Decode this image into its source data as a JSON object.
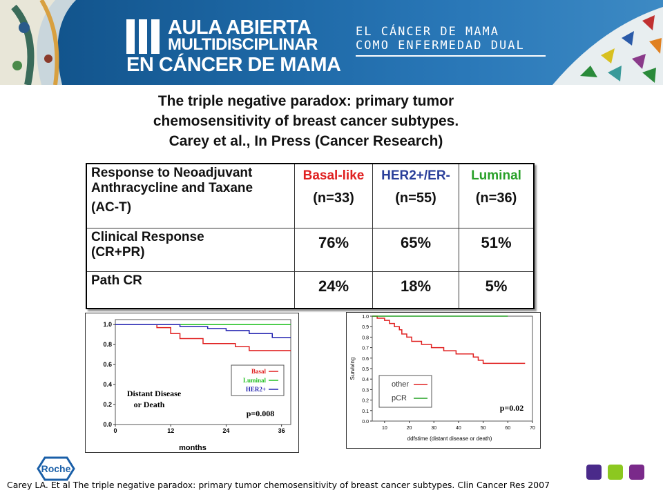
{
  "header": {
    "logo_line1": "AULA ABIERTA",
    "logo_line2": "MULTIDISCIPLINAR",
    "logo_line3": "EN CÁNCER DE MAMA",
    "subtitle_line1": "EL CÁNCER DE MAMA",
    "subtitle_line2": "COMO ENFERMEDAD DUAL",
    "colors": {
      "banner": "#1f6aa8"
    }
  },
  "title": {
    "line1": "The triple negative paradox: primary tumor",
    "line2": "chemosensitivity of breast cancer subtypes.",
    "line3": "Carey et al., In Press (Cancer Research)"
  },
  "table": {
    "header_label_lines": [
      "Response to Neoadjuvant",
      "Anthracycline and Taxane",
      "(AC-T)"
    ],
    "columns": [
      {
        "name": "Basal-like",
        "n": "(n=33)",
        "color": "#e02020"
      },
      {
        "name": "HER2+/ER-",
        "n": "(n=55)",
        "color": "#2a3f9a"
      },
      {
        "name": "Luminal",
        "n": "(n=36)",
        "color": "#28a028"
      }
    ],
    "rows": [
      {
        "label_lines": [
          "Clinical Response",
          "(CR+PR)"
        ],
        "values": [
          "76%",
          "65%",
          "51%"
        ]
      },
      {
        "label_lines": [
          "Path CR"
        ],
        "values": [
          "24%",
          "18%",
          "5%"
        ]
      }
    ]
  },
  "chart_data": [
    {
      "type": "line",
      "xlabel": "months",
      "ylabel": "",
      "x_ticks": [
        "0",
        "12",
        "24",
        "36"
      ],
      "y_ticks": [
        "0.0",
        "0.2",
        "0.4",
        "0.6",
        "0.8",
        "1.0"
      ],
      "xlim": [
        0,
        38
      ],
      "ylim": [
        0,
        1.05
      ],
      "annotation_lines": [
        "Distant Disease",
        "or Death"
      ],
      "p_value": "p=0.008",
      "legend_position": "right",
      "series": [
        {
          "name": "Basal",
          "color": "#e02020",
          "steps": [
            [
              0,
              1.0
            ],
            [
              9,
              0.97
            ],
            [
              12,
              0.91
            ],
            [
              14,
              0.86
            ],
            [
              19,
              0.81
            ],
            [
              26,
              0.78
            ],
            [
              29,
              0.74
            ],
            [
              38,
              0.74
            ]
          ]
        },
        {
          "name": "Luminal",
          "color": "#22c022",
          "steps": [
            [
              0,
              1.0
            ],
            [
              38,
              1.0
            ]
          ]
        },
        {
          "name": "HER2+",
          "color": "#2222b0",
          "steps": [
            [
              0,
              1.0
            ],
            [
              14,
              0.98
            ],
            [
              20,
              0.96
            ],
            [
              24,
              0.94
            ],
            [
              29,
              0.91
            ],
            [
              34,
              0.87
            ],
            [
              38,
              0.87
            ]
          ]
        }
      ]
    },
    {
      "type": "line",
      "xlabel": "ddfstime (distant disease or death)",
      "ylabel": "Surviving",
      "x_ticks": [
        "10",
        "20",
        "30",
        "40",
        "50",
        "60",
        "70"
      ],
      "y_ticks": [
        "0.0",
        "0.1",
        "0.2",
        "0.3",
        "0.4",
        "0.5",
        "0.6",
        "0.7",
        "0.8",
        "0.9",
        "1.0"
      ],
      "xlim": [
        5,
        70
      ],
      "ylim": [
        0,
        1.0
      ],
      "p_value": "p=0.02",
      "legend_position": "bottom-left",
      "series": [
        {
          "name": "other",
          "color": "#e02020",
          "steps": [
            [
              5,
              1.0
            ],
            [
              7,
              0.98
            ],
            [
              10,
              0.96
            ],
            [
              12,
              0.93
            ],
            [
              14,
              0.9
            ],
            [
              16,
              0.87
            ],
            [
              17,
              0.83
            ],
            [
              19,
              0.8
            ],
            [
              21,
              0.76
            ],
            [
              25,
              0.73
            ],
            [
              29,
              0.7
            ],
            [
              34,
              0.67
            ],
            [
              39,
              0.64
            ],
            [
              46,
              0.61
            ],
            [
              48,
              0.58
            ],
            [
              50,
              0.55
            ],
            [
              67,
              0.55
            ]
          ]
        },
        {
          "name": "pCR",
          "color": "#22a022",
          "steps": [
            [
              5,
              1.0
            ],
            [
              60,
              1.0
            ]
          ]
        }
      ]
    }
  ],
  "footer": {
    "brand": "Roche",
    "citation": "Carey LA. Et al The triple negative paradox: primary tumor chemosensitivity of breast cancer subtypes. Clin Cancer Res 2007",
    "squares_colors": [
      "#4a2a8a",
      "#8cc820",
      "#7a2a8a"
    ]
  }
}
